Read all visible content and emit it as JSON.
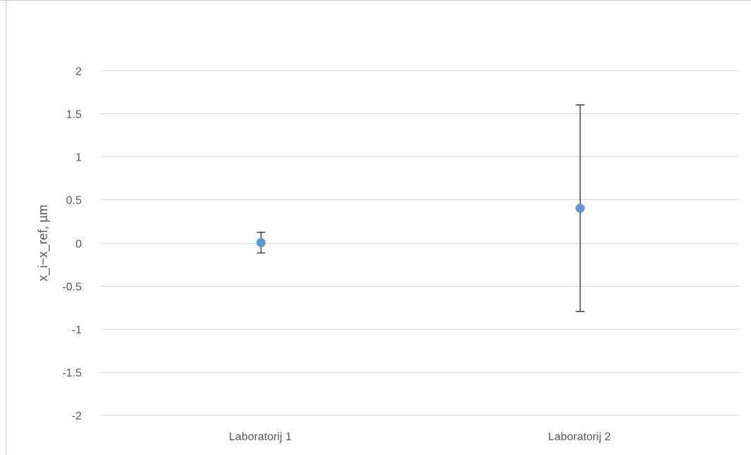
{
  "chart_data": {
    "type": "scatter",
    "title": "",
    "xlabel": "",
    "ylabel": "x_i−x_ref, µm",
    "categories": [
      "Laboratorij 1",
      "Laboratorij 2"
    ],
    "series": [
      {
        "values": [
          0,
          0.4
        ],
        "error_minus": [
          0.12,
          1.2
        ],
        "error_plus": [
          0.12,
          1.2
        ],
        "color": "#5B9BD5",
        "error_bar_color": "#404040"
      }
    ],
    "ylim": [
      -2,
      2
    ],
    "yticks": [
      "2",
      "1.5",
      "1",
      "0.5",
      "0",
      "-0.5",
      "-1",
      "-1.5",
      "-2"
    ],
    "ytick_values": [
      2,
      1.5,
      1,
      0.5,
      0,
      -0.5,
      -1,
      -1.5,
      -2
    ],
    "grid": true,
    "gridline_color": "#D9D9D9",
    "legend": "none"
  }
}
